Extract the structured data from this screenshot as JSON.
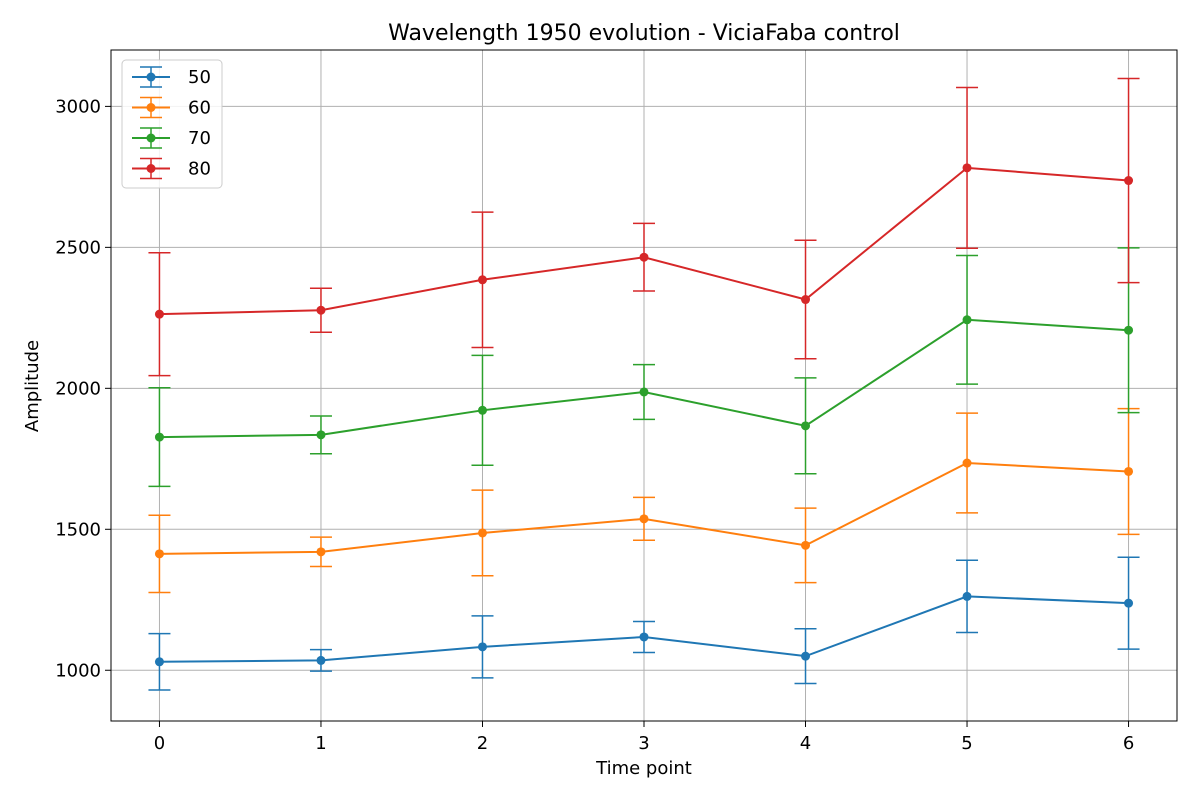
{
  "chart_data": {
    "type": "line",
    "title": "Wavelength 1950 evolution - ViciaFaba control",
    "xlabel": "Time point",
    "ylabel": "Amplitude",
    "x": [
      0,
      1,
      2,
      3,
      4,
      5,
      6
    ],
    "xticks": [
      0,
      1,
      2,
      3,
      4,
      5,
      6
    ],
    "yticks": [
      1000,
      1500,
      2000,
      2500,
      3000
    ],
    "xlim": [
      -0.3,
      6.3
    ],
    "ylim": [
      820,
      3200
    ],
    "grid": true,
    "legend_position": "top-left",
    "error_bars": true,
    "series": [
      {
        "name": "50",
        "color": "#1f77b4",
        "values": [
          1030,
          1035,
          1083,
          1118,
          1050,
          1262,
          1238
        ],
        "errors": [
          100,
          38,
          110,
          55,
          97,
          128,
          163
        ]
      },
      {
        "name": "60",
        "color": "#ff7f0e",
        "values": [
          1413,
          1420,
          1487,
          1537,
          1443,
          1735,
          1705
        ],
        "errors": [
          137,
          52,
          152,
          76,
          132,
          177,
          223
        ]
      },
      {
        "name": "70",
        "color": "#2ca02c",
        "values": [
          1827,
          1835,
          1922,
          1987,
          1867,
          2243,
          2206
        ],
        "errors": [
          175,
          67,
          195,
          97,
          170,
          228,
          292
        ]
      },
      {
        "name": "80",
        "color": "#d62728",
        "values": [
          2263,
          2277,
          2385,
          2465,
          2315,
          2782,
          2737
        ],
        "errors": [
          218,
          78,
          240,
          120,
          210,
          285,
          362
        ]
      }
    ]
  }
}
